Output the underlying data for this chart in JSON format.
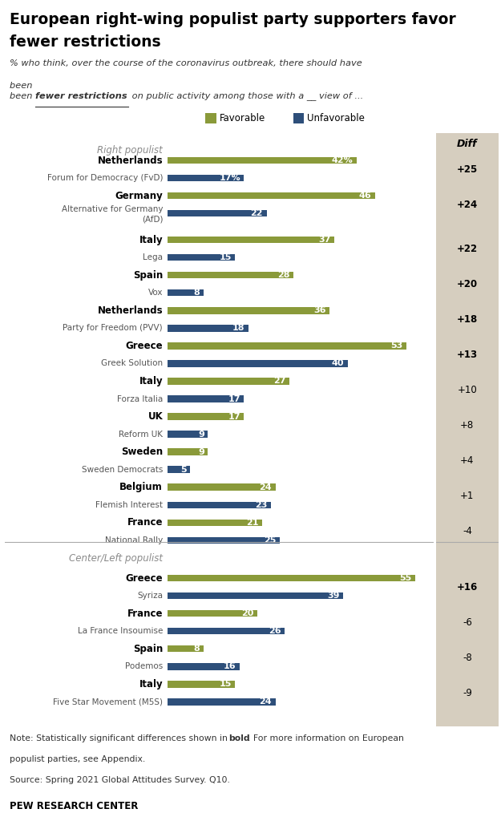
{
  "title": "European right-wing populist party supporters favor\nfewer restrictions",
  "favorable_color": "#8A9A3A",
  "unfavorable_color": "#2E4F7A",
  "diff_bg_color": "#D6CEBF",
  "section_label_color": "#8A8A8A",
  "right_populist_label": "Right populist",
  "center_left_populist_label": "Center/Left populist",
  "right_populist": [
    {
      "country": "Netherlands",
      "party": "Forum for Democracy (FvD)",
      "favorable": 42,
      "unfavorable": 17,
      "diff": "+25",
      "diff_bold": true,
      "pct_sign": true
    },
    {
      "country": "Germany",
      "party": "Alternative for Germany\n(AfD)",
      "favorable": 46,
      "unfavorable": 22,
      "diff": "+24",
      "diff_bold": true,
      "pct_sign": false
    },
    {
      "country": "Italy",
      "party": "Lega",
      "favorable": 37,
      "unfavorable": 15,
      "diff": "+22",
      "diff_bold": true,
      "pct_sign": false
    },
    {
      "country": "Spain",
      "party": "Vox",
      "favorable": 28,
      "unfavorable": 8,
      "diff": "+20",
      "diff_bold": true,
      "pct_sign": false
    },
    {
      "country": "Netherlands",
      "party": "Party for Freedom (PVV)",
      "favorable": 36,
      "unfavorable": 18,
      "diff": "+18",
      "diff_bold": true,
      "pct_sign": false
    },
    {
      "country": "Greece",
      "party": "Greek Solution",
      "favorable": 53,
      "unfavorable": 40,
      "diff": "+13",
      "diff_bold": true,
      "pct_sign": false
    },
    {
      "country": "Italy",
      "party": "Forza Italia",
      "favorable": 27,
      "unfavorable": 17,
      "diff": "+10",
      "diff_bold": false,
      "pct_sign": false
    },
    {
      "country": "UK",
      "party": "Reform UK",
      "favorable": 17,
      "unfavorable": 9,
      "diff": "+8",
      "diff_bold": false,
      "pct_sign": false
    },
    {
      "country": "Sweden",
      "party": "Sweden Democrats",
      "favorable": 9,
      "unfavorable": 5,
      "diff": "+4",
      "diff_bold": false,
      "pct_sign": false
    },
    {
      "country": "Belgium",
      "party": "Flemish Interest",
      "favorable": 24,
      "unfavorable": 23,
      "diff": "+1",
      "diff_bold": false,
      "pct_sign": false
    },
    {
      "country": "France",
      "party": "National Rally",
      "favorable": 21,
      "unfavorable": 25,
      "diff": "-4",
      "diff_bold": false,
      "pct_sign": false
    }
  ],
  "center_left_populist": [
    {
      "country": "Greece",
      "party": "Syriza",
      "favorable": 55,
      "unfavorable": 39,
      "diff": "+16",
      "diff_bold": true,
      "pct_sign": false
    },
    {
      "country": "France",
      "party": "La France Insoumise",
      "favorable": 20,
      "unfavorable": 26,
      "diff": "-6",
      "diff_bold": false,
      "pct_sign": false
    },
    {
      "country": "Spain",
      "party": "Podemos",
      "favorable": 8,
      "unfavorable": 16,
      "diff": "-8",
      "diff_bold": false,
      "pct_sign": false
    },
    {
      "country": "Italy",
      "party": "Five Star Movement (M5S)",
      "favorable": 15,
      "unfavorable": 24,
      "diff": "-9",
      "diff_bold": false,
      "pct_sign": false
    }
  ],
  "note1": "Note: Statistically significant differences shown in ",
  "note1_bold": "bold",
  "note1_after": ". For more information on European",
  "note2": "populist parties, see Appendix.",
  "note3": "Source: Spring 2021 Global Attitudes Survey. Q10.",
  "source_bold": "PEW RESEARCH CENTER",
  "max_value": 58,
  "bar_height": 0.38
}
